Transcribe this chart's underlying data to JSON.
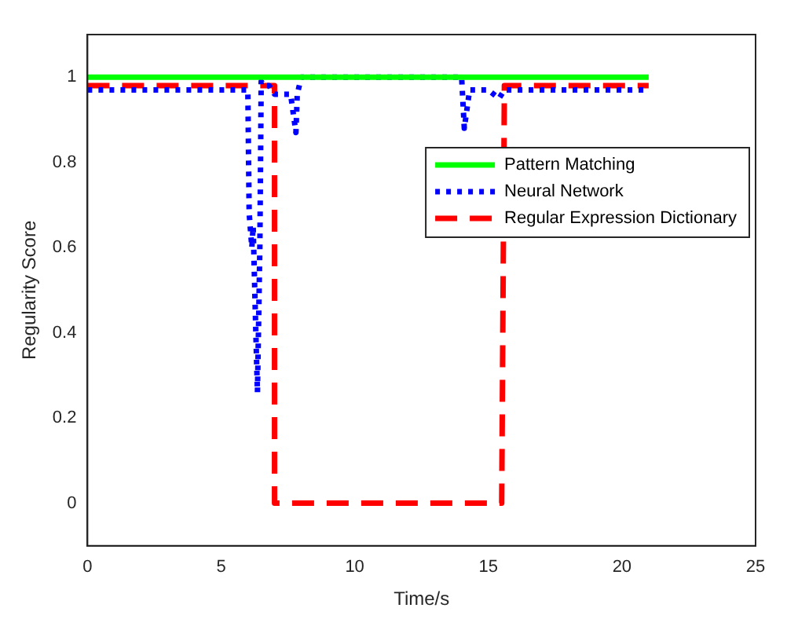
{
  "chart_data": {
    "type": "line",
    "xlabel": "Time/s",
    "ylabel": "Regularity Score",
    "xlim": [
      0,
      25
    ],
    "xticks": [
      0,
      5,
      10,
      15,
      20,
      25
    ],
    "ylim": [
      -0.1,
      1.1
    ],
    "yticks": [
      0,
      0.2,
      0.4,
      0.6,
      0.8,
      1
    ],
    "grid": false,
    "legend": "top right",
    "marker": "none",
    "series": [
      {
        "name": "Pattern Matching",
        "color": "#00ff00",
        "line_style": "solid",
        "x": [
          0,
          21
        ],
        "values": [
          1,
          1
        ]
      },
      {
        "name": "Neural Network",
        "color": "#0000ff",
        "line_style": "dotted",
        "x": [
          0,
          6.0,
          6.05,
          6.15,
          6.2,
          6.3,
          6.36,
          6.45,
          6.5,
          6.6,
          6.8,
          7.0,
          7.6,
          7.8,
          7.85,
          8.0,
          14.0,
          14.1,
          14.3,
          15.0,
          15.4,
          15.6,
          21
        ],
        "values": [
          0.97,
          0.97,
          0.68,
          0.6,
          0.65,
          0.4,
          0.26,
          0.6,
          0.99,
          0.98,
          0.98,
          0.96,
          0.96,
          0.87,
          0.96,
          1,
          1,
          0.88,
          0.97,
          0.97,
          0.95,
          0.97,
          0.97
        ]
      },
      {
        "name": "Regular Expression Dictionary",
        "color": "#ff0000",
        "line_style": "dashed",
        "x": [
          0,
          7.0,
          7.0,
          15.5,
          15.6,
          21
        ],
        "values": [
          0.98,
          0.98,
          0,
          0,
          0.98,
          0.98
        ]
      }
    ]
  }
}
